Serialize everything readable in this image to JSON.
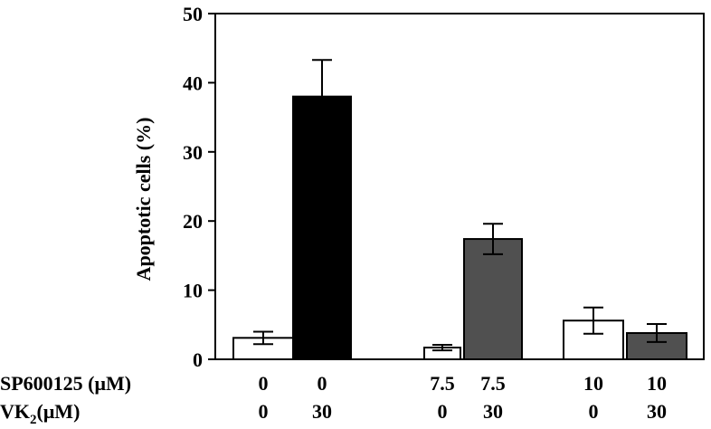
{
  "chart_data": {
    "type": "bar",
    "ylabel": "Apoptotic cells (%)",
    "ylim": [
      0,
      50
    ],
    "yticks": [
      "0",
      "10",
      "20",
      "30",
      "40",
      "50"
    ],
    "categories": [
      {
        "sp": "0",
        "vk": "0"
      },
      {
        "sp": "0",
        "vk": "30"
      },
      {
        "sp": "7.5",
        "vk": "0"
      },
      {
        "sp": "7.5",
        "vk": "30"
      },
      {
        "sp": "10",
        "vk": "0"
      },
      {
        "sp": "10",
        "vk": "30"
      }
    ],
    "values": [
      3.1,
      38.0,
      1.7,
      17.4,
      5.6,
      3.8
    ],
    "errors": [
      0.9,
      5.3,
      0.4,
      2.2,
      1.9,
      1.3
    ],
    "bar_colors": [
      "#ffffff",
      "#000000",
      "#ffffff",
      "#505050",
      "#ffffff",
      "#505050"
    ],
    "row_labels": {
      "sp": "SP600125 (μM)",
      "vk_main": "VK",
      "vk_sub": "2",
      "vk_unit": "(μM)"
    },
    "grid": false
  }
}
